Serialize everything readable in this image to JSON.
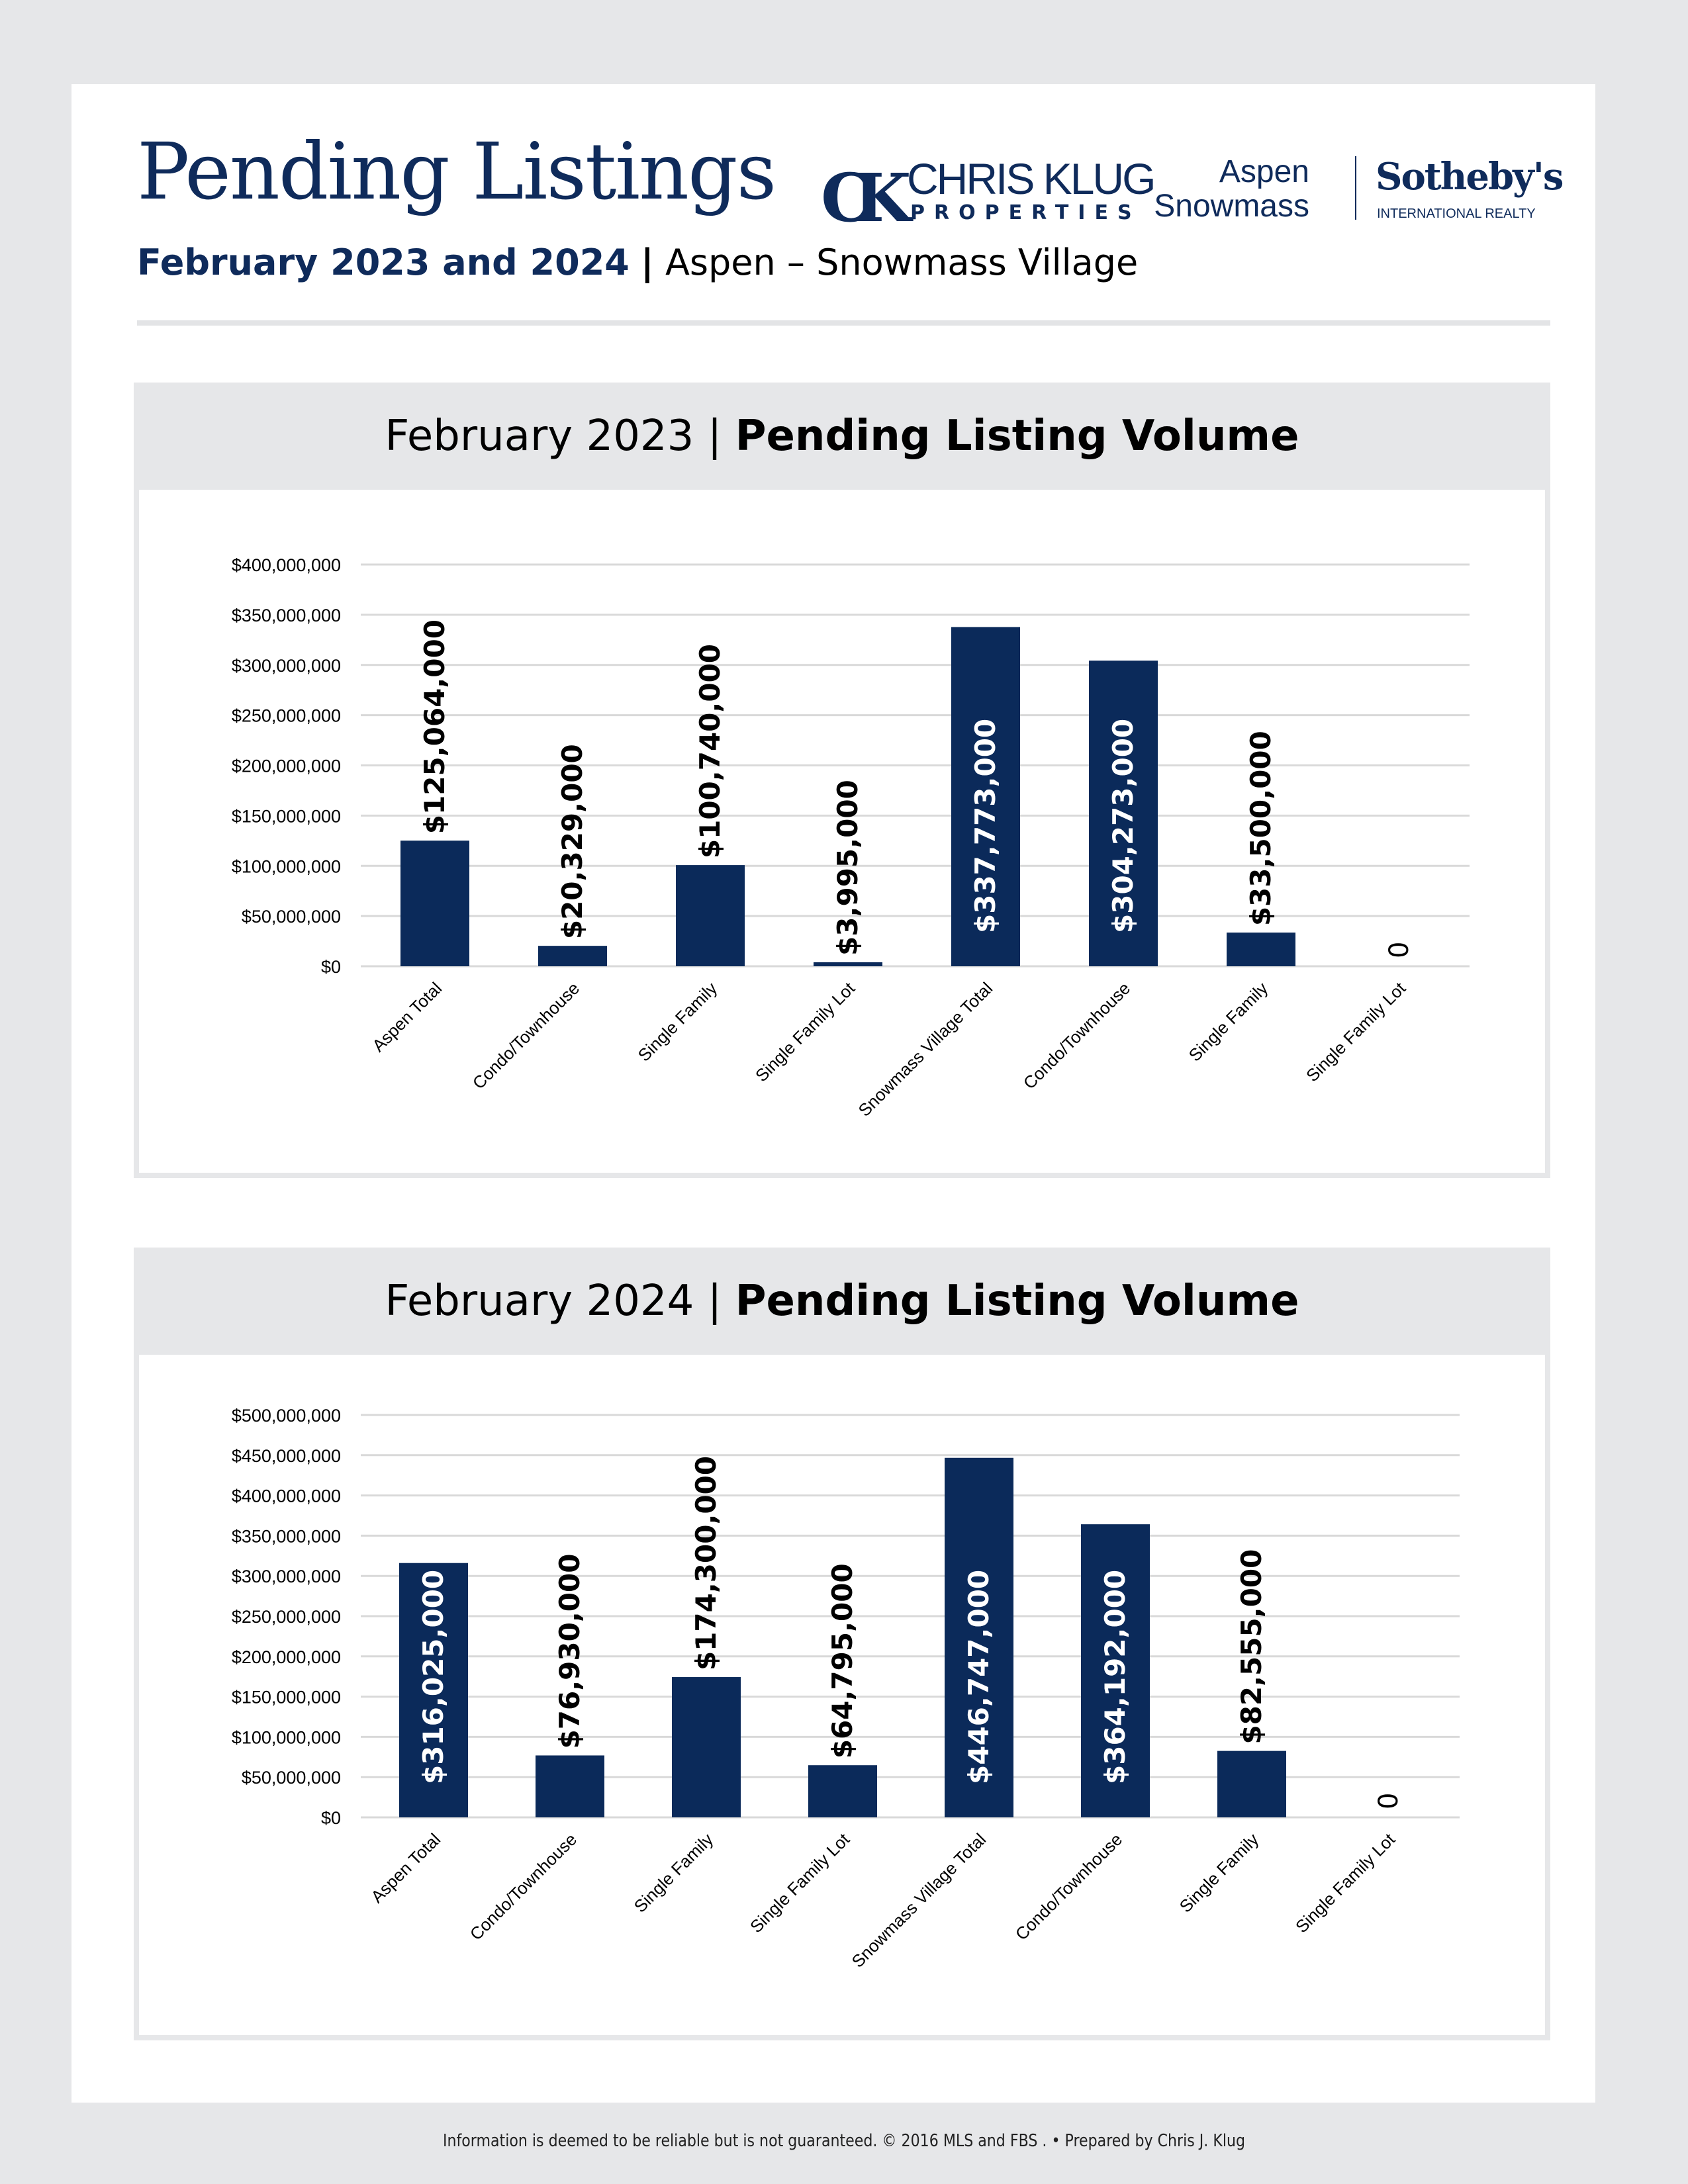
{
  "header": {
    "title": "Pending Listings",
    "subtitle_bold": "February 2023 and 2024",
    "subtitle_sep": "|",
    "subtitle_rest": "Aspen – Snowmass Village",
    "logo_ck": {
      "mark": "CK",
      "name": "CHRIS KLUG",
      "sub": "PROPERTIES"
    },
    "logo_sothebys": {
      "line1": "Aspen",
      "line2": "Snowmass",
      "name": "Sotheby's",
      "sub": "INTERNATIONAL REALTY"
    }
  },
  "colors": {
    "navy": "#0f2b5b",
    "bar": "#0b2a5a",
    "grid": "#d9d9d9",
    "panel": "#e6e7e9"
  },
  "chart_data": [
    {
      "type": "bar",
      "title_light": "February 2023 |",
      "title_bold": "Pending Listing Volume",
      "categories": [
        "Aspen Total",
        "Condo/Townhouse",
        "Single Family",
        "Single Family Lot",
        "Snowmass Village Total",
        "Condo/Townhouse",
        "Single Family",
        "Single Family Lot"
      ],
      "values": [
        125064000,
        20329000,
        100740000,
        3995000,
        337773000,
        304273000,
        33500000,
        0
      ],
      "data_labels": [
        "$125,064,000",
        "$20,329,000",
        "$100,740,000",
        "$3,995,000",
        "$337,773,000",
        "$304,273,000",
        "$33,500,000",
        "0"
      ],
      "yticks": [
        0,
        50000000,
        100000000,
        150000000,
        200000000,
        250000000,
        300000000,
        350000000,
        400000000
      ],
      "ytick_labels": [
        "$0",
        "$50,000,000",
        "$100,000,000",
        "$150,000,000",
        "$200,000,000",
        "$250,000,000",
        "$300,000,000",
        "$350,000,000",
        "$400,000,000"
      ],
      "ylim": [
        0,
        400000000
      ],
      "grid": true
    },
    {
      "type": "bar",
      "title_light": "February 2024 |",
      "title_bold": "Pending Listing Volume",
      "categories": [
        "Aspen Total",
        "Condo/Townhouse",
        "Single Family",
        "Single Family Lot",
        "Snowmass Village Total",
        "Condo/Townhouse",
        "Single Family",
        "Single Family Lot"
      ],
      "values": [
        316025000,
        76930000,
        174300000,
        64795000,
        446747000,
        364192000,
        82555000,
        0
      ],
      "data_labels": [
        "$316,025,000",
        "$76,930,000",
        "$174,300,000",
        "$64,795,000",
        "$446,747,000",
        "$364,192,000",
        "$82,555,000",
        "0"
      ],
      "yticks": [
        0,
        50000000,
        100000000,
        150000000,
        200000000,
        250000000,
        300000000,
        350000000,
        400000000,
        450000000,
        500000000
      ],
      "ytick_labels": [
        "$0",
        "$50,000,000",
        "$100,000,000",
        "$150,000,000",
        "$200,000,000",
        "$250,000,000",
        "$300,000,000",
        "$350,000,000",
        "$400,000,000",
        "$450,000,000",
        "$500,000,000"
      ],
      "ylim": [
        0,
        500000000
      ],
      "grid": true
    }
  ],
  "footer": "Information is deemed to be reliable but is not guaranteed. © 2016 MLS and FBS . • Prepared by Chris J. Klug"
}
